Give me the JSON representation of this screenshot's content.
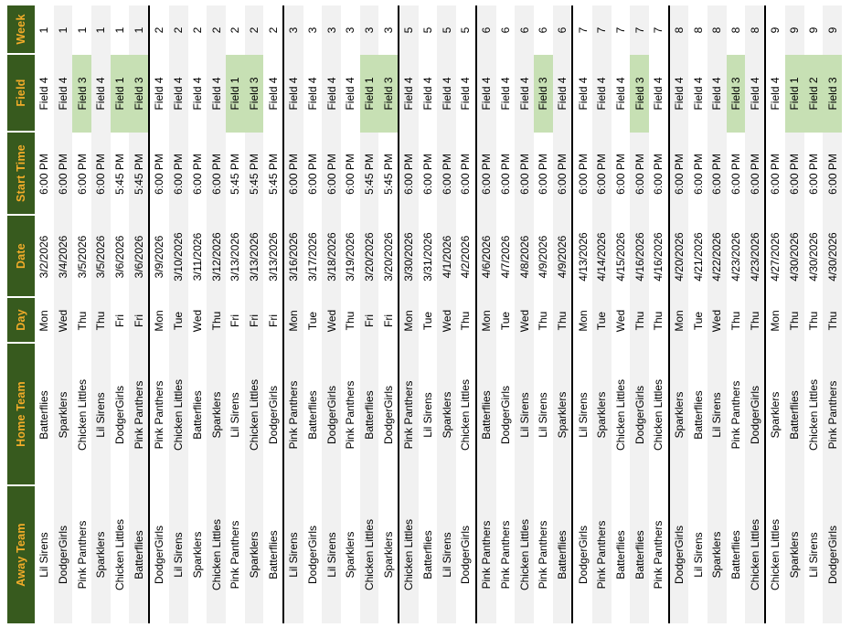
{
  "colors": {
    "header_background": "#375A1E",
    "header_text": "#F2AC29",
    "highlight_green": "#C7E0B4",
    "stripe_gray": "#F1F1F1",
    "group_border": "#000000"
  },
  "table": {
    "columns": [
      {
        "key": "away",
        "label": "Away Team"
      },
      {
        "key": "home",
        "label": "Home Team"
      },
      {
        "key": "day",
        "label": "Day"
      },
      {
        "key": "date",
        "label": "Date"
      },
      {
        "key": "time",
        "label": "Start Time"
      },
      {
        "key": "field",
        "label": "Field"
      },
      {
        "key": "week",
        "label": "Week"
      }
    ],
    "weeks": [
      {
        "week": "1",
        "games": [
          {
            "away": "Lil Sirens",
            "home": "Batterflies",
            "day": "Mon",
            "date": "3/2/2026",
            "time": "6:00 PM",
            "field": "Field 4",
            "week": "1",
            "hl": false
          },
          {
            "away": "DodgerGirls",
            "home": "Sparklers",
            "day": "Wed",
            "date": "3/4/2026",
            "time": "6:00 PM",
            "field": "Field 4",
            "week": "1",
            "hl": false
          },
          {
            "away": "Pink Panthers",
            "home": "Chicken Littles",
            "day": "Thu",
            "date": "3/5/2026",
            "time": "6:00 PM",
            "field": "Field 3",
            "week": "1",
            "hl": true
          },
          {
            "away": "Sparklers",
            "home": "Lil Sirens",
            "day": "Thu",
            "date": "3/5/2026",
            "time": "6:00 PM",
            "field": "Field 4",
            "week": "1",
            "hl": false
          },
          {
            "away": "Chicken Littles",
            "home": "DodgerGirls",
            "day": "Fri",
            "date": "3/6/2026",
            "time": "5:45 PM",
            "field": "Field 1",
            "week": "1",
            "hl": true
          },
          {
            "away": "Batterflies",
            "home": "Pink Panthers",
            "day": "Fri",
            "date": "3/6/2026",
            "time": "5:45 PM",
            "field": "Field 3",
            "week": "1",
            "hl": true
          }
        ]
      },
      {
        "week": "2",
        "games": [
          {
            "away": "DodgerGirls",
            "home": "Pink Panthers",
            "day": "Mon",
            "date": "3/9/2026",
            "time": "6:00 PM",
            "field": "Field 4",
            "week": "2",
            "hl": false
          },
          {
            "away": "Lil Sirens",
            "home": "Chicken Littles",
            "day": "Tue",
            "date": "3/10/2026",
            "time": "6:00 PM",
            "field": "Field 4",
            "week": "2",
            "hl": false
          },
          {
            "away": "Sparklers",
            "home": "Batterflies",
            "day": "Wed",
            "date": "3/11/2026",
            "time": "6:00 PM",
            "field": "Field 4",
            "week": "2",
            "hl": false
          },
          {
            "away": "Chicken Littles",
            "home": "Sparklers",
            "day": "Thu",
            "date": "3/12/2026",
            "time": "6:00 PM",
            "field": "Field 4",
            "week": "2",
            "hl": false
          },
          {
            "away": "Pink Panthers",
            "home": "Lil Sirens",
            "day": "Fri",
            "date": "3/13/2026",
            "time": "5:45 PM",
            "field": "Field 1",
            "week": "2",
            "hl": true
          },
          {
            "away": "Sparklers",
            "home": "Chicken Littles",
            "day": "Fri",
            "date": "3/13/2026",
            "time": "5:45 PM",
            "field": "Field 3",
            "week": "2",
            "hl": true
          },
          {
            "away": "Batterflies",
            "home": "DodgerGirls",
            "day": "Fri",
            "date": "3/13/2026",
            "time": "5:45 PM",
            "field": "Field 4",
            "week": "2",
            "hl": false
          }
        ]
      },
      {
        "week": "3",
        "games": [
          {
            "away": "Lil Sirens",
            "home": "Pink Panthers",
            "day": "Mon",
            "date": "3/16/2026",
            "time": "6:00 PM",
            "field": "Field 4",
            "week": "3",
            "hl": false
          },
          {
            "away": "DodgerGirls",
            "home": "Batterflies",
            "day": "Tue",
            "date": "3/17/2026",
            "time": "6:00 PM",
            "field": "Field 4",
            "week": "3",
            "hl": false
          },
          {
            "away": "Lil Sirens",
            "home": "DodgerGirls",
            "day": "Wed",
            "date": "3/18/2026",
            "time": "6:00 PM",
            "field": "Field 4",
            "week": "3",
            "hl": false
          },
          {
            "away": "Sparklers",
            "home": "Pink Panthers",
            "day": "Thu",
            "date": "3/19/2026",
            "time": "6:00 PM",
            "field": "Field 4",
            "week": "3",
            "hl": false
          },
          {
            "away": "Chicken Littles",
            "home": "Batterflies",
            "day": "Fri",
            "date": "3/20/2026",
            "time": "5:45 PM",
            "field": "Field 1",
            "week": "3",
            "hl": true
          },
          {
            "away": "Sparklers",
            "home": "DodgerGirls",
            "day": "Fri",
            "date": "3/20/2026",
            "time": "5:45 PM",
            "field": "Field 3",
            "week": "3",
            "hl": true
          }
        ]
      },
      {
        "week": "5",
        "games": [
          {
            "away": "Chicken Littles",
            "home": "Pink Panthers",
            "day": "Mon",
            "date": "3/30/2026",
            "time": "6:00 PM",
            "field": "Field 4",
            "week": "5",
            "hl": false
          },
          {
            "away": "Batterflies",
            "home": "Lil Sirens",
            "day": "Tue",
            "date": "3/31/2026",
            "time": "6:00 PM",
            "field": "Field 4",
            "week": "5",
            "hl": false
          },
          {
            "away": "Lil Sirens",
            "home": "Sparklers",
            "day": "Wed",
            "date": "4/1/2026",
            "time": "6:00 PM",
            "field": "Field 4",
            "week": "5",
            "hl": false
          },
          {
            "away": "DodgerGirls",
            "home": "Chicken Littles",
            "day": "Thu",
            "date": "4/2/2026",
            "time": "6:00 PM",
            "field": "Field 4",
            "week": "5",
            "hl": false
          }
        ]
      },
      {
        "week": "6",
        "games": [
          {
            "away": "Pink Panthers",
            "home": "Batterflies",
            "day": "Mon",
            "date": "4/6/2026",
            "time": "6:00 PM",
            "field": "Field 4",
            "week": "6",
            "hl": false
          },
          {
            "away": "Pink Panthers",
            "home": "DodgerGirls",
            "day": "Tue",
            "date": "4/7/2026",
            "time": "6:00 PM",
            "field": "Field 4",
            "week": "6",
            "hl": false
          },
          {
            "away": "Chicken Littles",
            "home": "Lil Sirens",
            "day": "Wed",
            "date": "4/8/2026",
            "time": "6:00 PM",
            "field": "Field 4",
            "week": "6",
            "hl": false
          },
          {
            "away": "Pink Panthers",
            "home": "Lil Sirens",
            "day": "Thu",
            "date": "4/9/2026",
            "time": "6:00 PM",
            "field": "Field 3",
            "week": "6",
            "hl": true
          },
          {
            "away": "Batterflies",
            "home": "Sparklers",
            "day": "Thu",
            "date": "4/9/2026",
            "time": "6:00 PM",
            "field": "Field 4",
            "week": "6",
            "hl": false
          }
        ]
      },
      {
        "week": "7",
        "games": [
          {
            "away": "DodgerGirls",
            "home": "Lil Sirens",
            "day": "Mon",
            "date": "4/13/2026",
            "time": "6:00 PM",
            "field": "Field 4",
            "week": "7",
            "hl": false
          },
          {
            "away": "Pink Panthers",
            "home": "Sparklers",
            "day": "Tue",
            "date": "4/14/2026",
            "time": "6:00 PM",
            "field": "Field 4",
            "week": "7",
            "hl": false
          },
          {
            "away": "Batterflies",
            "home": "Chicken Littles",
            "day": "Wed",
            "date": "4/15/2026",
            "time": "6:00 PM",
            "field": "Field 4",
            "week": "7",
            "hl": false
          },
          {
            "away": "Batterflies",
            "home": "DodgerGirls",
            "day": "Thu",
            "date": "4/16/2026",
            "time": "6:00 PM",
            "field": "Field 3",
            "week": "7",
            "hl": true
          },
          {
            "away": "Pink Panthers",
            "home": "Chicken Littles",
            "day": "Thu",
            "date": "4/16/2026",
            "time": "6:00 PM",
            "field": "Field 4",
            "week": "7",
            "hl": false
          }
        ]
      },
      {
        "week": "8",
        "games": [
          {
            "away": "DodgerGirls",
            "home": "Sparklers",
            "day": "Mon",
            "date": "4/20/2026",
            "time": "6:00 PM",
            "field": "Field 4",
            "week": "8",
            "hl": false
          },
          {
            "away": "Lil Sirens",
            "home": "Batterflies",
            "day": "Tue",
            "date": "4/21/2026",
            "time": "6:00 PM",
            "field": "Field 4",
            "week": "8",
            "hl": false
          },
          {
            "away": "Sparklers",
            "home": "Lil Sirens",
            "day": "Wed",
            "date": "4/22/2026",
            "time": "6:00 PM",
            "field": "Field 4",
            "week": "8",
            "hl": false
          },
          {
            "away": "Batterflies",
            "home": "Pink Panthers",
            "day": "Thu",
            "date": "4/23/2026",
            "time": "6:00 PM",
            "field": "Field 3",
            "week": "8",
            "hl": true
          },
          {
            "away": "Chicken Littles",
            "home": "DodgerGirls",
            "day": "Thu",
            "date": "4/23/2026",
            "time": "6:00 PM",
            "field": "Field 4",
            "week": "8",
            "hl": false
          }
        ]
      },
      {
        "week": "9",
        "games": [
          {
            "away": "Chicken Littles",
            "home": "Sparklers",
            "day": "Mon",
            "date": "4/27/2026",
            "time": "6:00 PM",
            "field": "Field 4",
            "week": "9",
            "hl": false
          },
          {
            "away": "Sparklers",
            "home": "Batterflies",
            "day": "Thu",
            "date": "4/30/2026",
            "time": "6:00 PM",
            "field": "Field 1",
            "week": "9",
            "hl": true
          },
          {
            "away": "Lil Sirens",
            "home": "Chicken Littles",
            "day": "Thu",
            "date": "4/30/2026",
            "time": "6:00 PM",
            "field": "Field 2",
            "week": "9",
            "hl": true
          },
          {
            "away": "DodgerGirls",
            "home": "Pink Panthers",
            "day": "Thu",
            "date": "4/30/2026",
            "time": "6:00 PM",
            "field": "Field 3",
            "week": "9",
            "hl": true
          }
        ]
      }
    ]
  }
}
